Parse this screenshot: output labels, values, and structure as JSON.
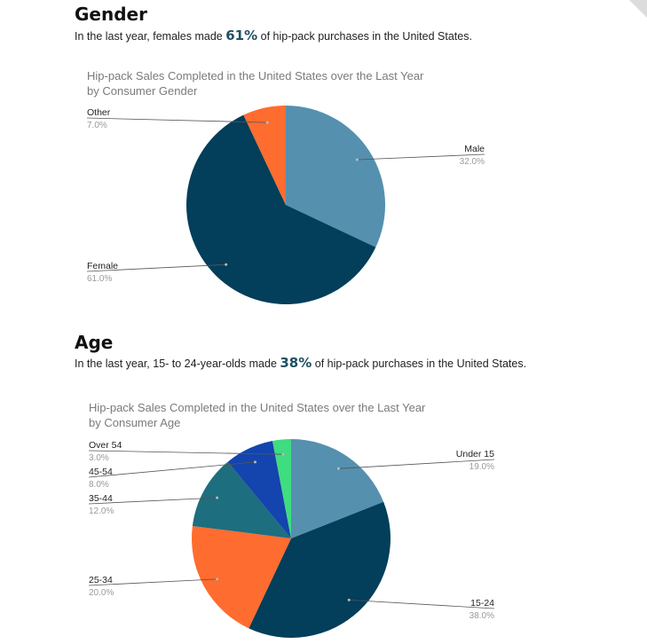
{
  "gender": {
    "heading": "Gender",
    "text_before": "In the last year, females made ",
    "highlight": "61%",
    "text_after": " of hip-pack purchases in the United States."
  },
  "age": {
    "heading": "Age",
    "text_before": "In the last year, 15- to 24-year-olds made ",
    "highlight": "38%",
    "text_after": " of hip-pack purchases in the United States."
  },
  "chart_data": [
    {
      "type": "pie",
      "title": "Hip-pack Sales Completed in the United States over the Last Year",
      "subtitle": "by Consumer Gender",
      "categories": [
        "Male",
        "Female",
        "Other"
      ],
      "values": [
        32.0,
        61.0,
        7.0
      ],
      "value_labels": [
        "32.0%",
        "61.0%",
        "7.0%"
      ],
      "colors": [
        "#5590af",
        "#033e5a",
        "#ff6c2f"
      ],
      "label_sides": [
        "right",
        "left",
        "left"
      ]
    },
    {
      "type": "pie",
      "title": "Hip-pack Sales Completed in the United States over the Last Year",
      "subtitle": "by Consumer Age",
      "categories": [
        "Under 15",
        "15-24",
        "25-34",
        "35-44",
        "45-54",
        "Over 54"
      ],
      "values": [
        19.0,
        38.0,
        20.0,
        12.0,
        8.0,
        3.0
      ],
      "value_labels": [
        "19.0%",
        "38.0%",
        "20.0%",
        "12.0%",
        "8.0%",
        "3.0%"
      ],
      "colors": [
        "#5590af",
        "#033e5a",
        "#ff6c2f",
        "#1d6e7e",
        "#1444ad",
        "#3fdc80"
      ],
      "label_sides": [
        "right",
        "right",
        "left",
        "left",
        "left",
        "left"
      ]
    }
  ]
}
